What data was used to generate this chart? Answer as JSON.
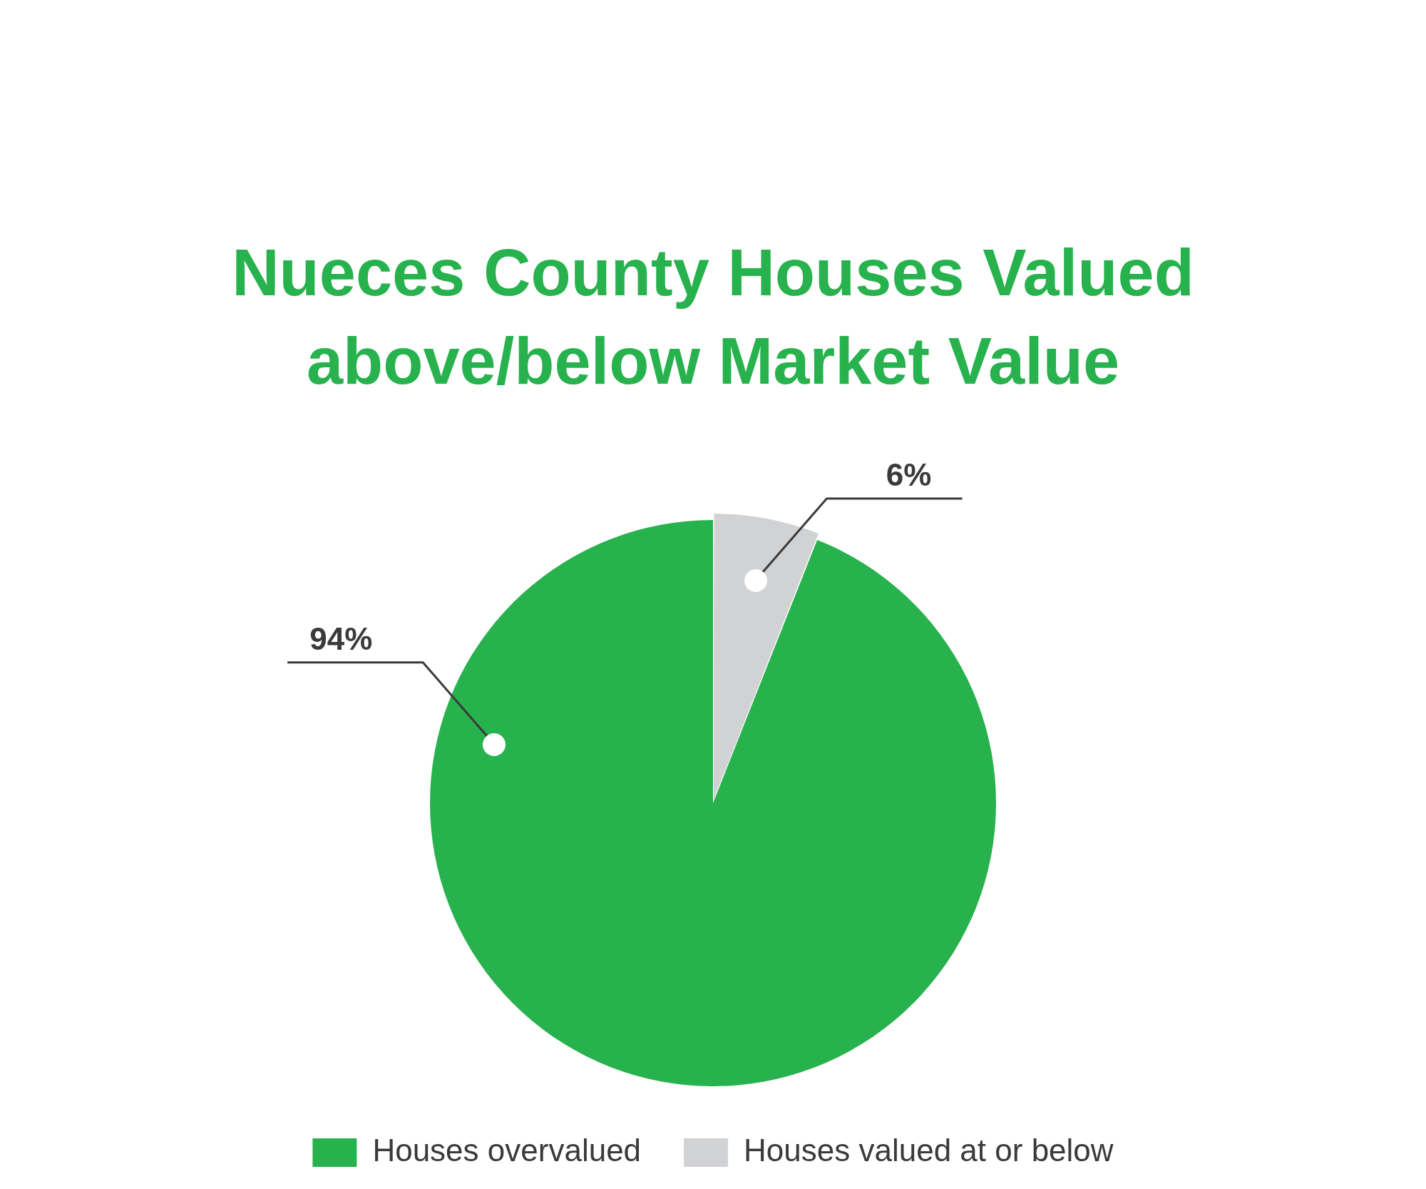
{
  "chart_data": {
    "type": "pie",
    "title": "Nueces County Houses Valued above/below Market Value",
    "categories": [
      "Houses overvalued",
      "Houses valued at or below"
    ],
    "values": [
      94,
      6
    ],
    "colors": [
      "#28b24e",
      "#d1d2d4"
    ],
    "value_labels": [
      "94%",
      "6%"
    ],
    "legend": "bottom"
  }
}
